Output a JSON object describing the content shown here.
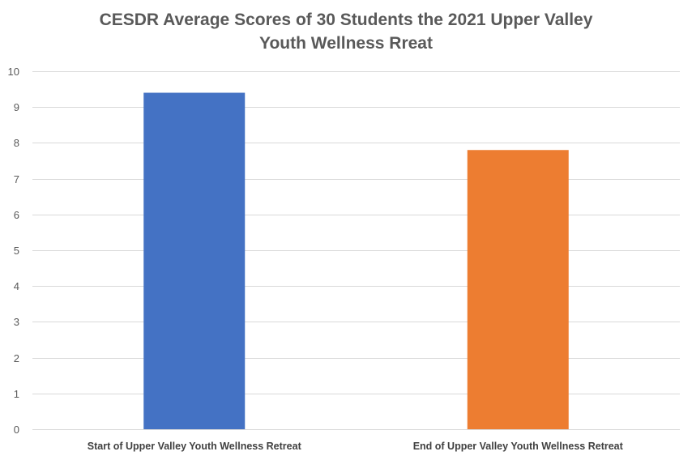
{
  "chart_data": {
    "type": "bar",
    "title_lines": [
      "CESDR Average Scores of 30 Students the 2021 Upper Valley",
      "Youth Wellness Rreat"
    ],
    "categories": [
      "Start of Upper Valley Youth Wellness Retreat",
      "End of Upper Valley Youth Wellness Retreat"
    ],
    "values": [
      9.4,
      7.8
    ],
    "colors": [
      "#4472c4",
      "#ed7d31"
    ],
    "ylim": [
      0,
      10
    ],
    "yticks": [
      0,
      1,
      2,
      3,
      4,
      5,
      6,
      7,
      8,
      9,
      10
    ],
    "gridlines": "horizontal",
    "legend": "none",
    "xlabel": "",
    "ylabel": ""
  }
}
